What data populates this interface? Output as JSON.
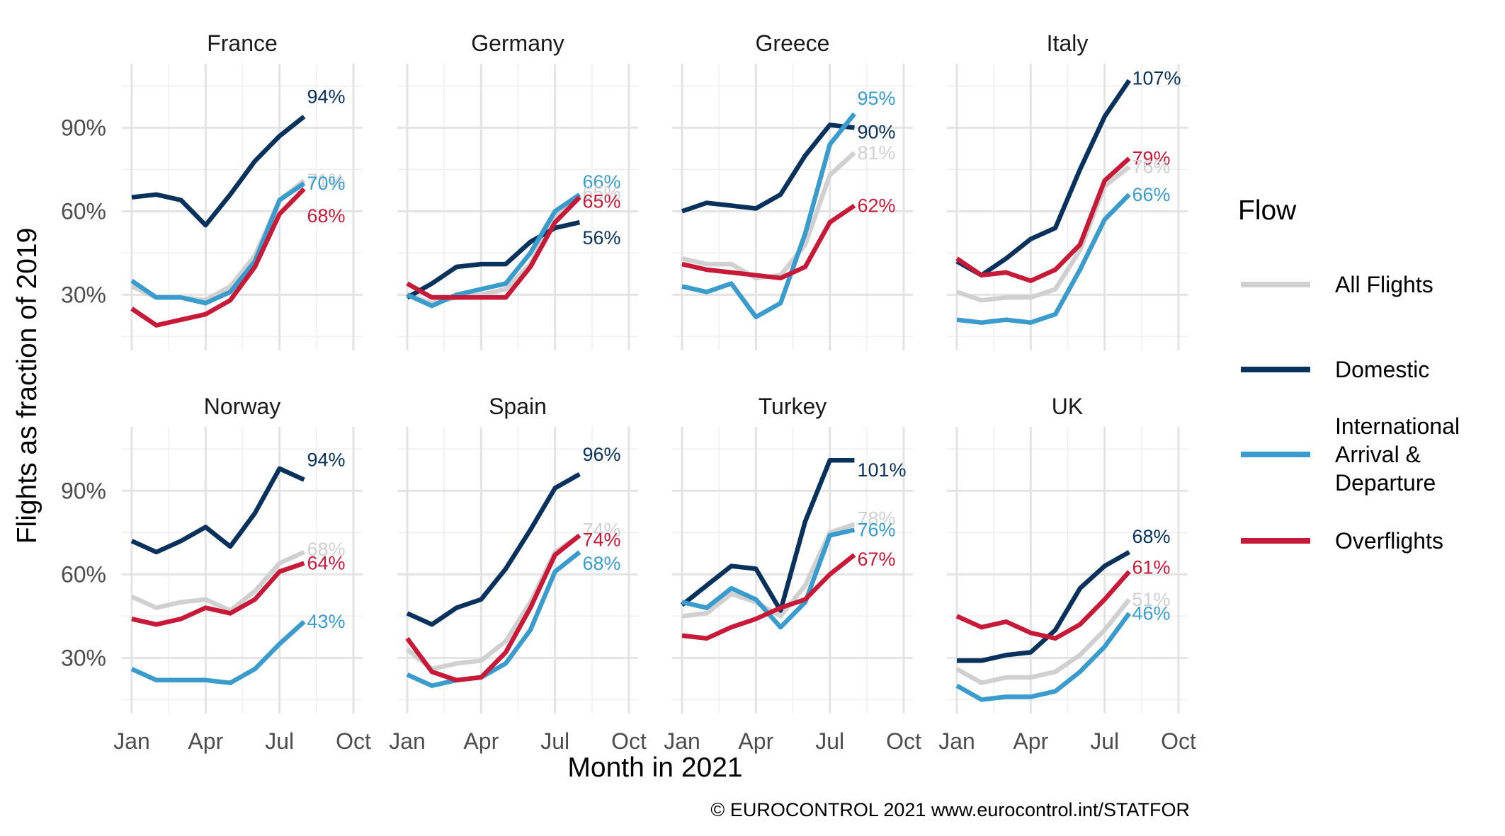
{
  "figure": {
    "ylabel": "Flights as fraction of 2019",
    "xlabel": "Month in 2021",
    "caption": "© EUROCONTROL 2021 www.eurocontrol.int/STATFOR"
  },
  "legend": {
    "title": "Flow",
    "position": "right",
    "entries": [
      {
        "key": "all",
        "label_lines": [
          "All Flights"
        ],
        "color": "#d0d0d0"
      },
      {
        "key": "domestic",
        "label_lines": [
          "Domestic"
        ],
        "color": "#08325c"
      },
      {
        "key": "intl",
        "label_lines": [
          "International",
          "Arrival &",
          "Departure"
        ],
        "color": "#3a9ccc"
      },
      {
        "key": "over",
        "label_lines": [
          "Overflights"
        ],
        "color": "#c61a38"
      }
    ]
  },
  "chart_data": {
    "type": "line",
    "facet_layout": "2 rows x 4 columns",
    "x_ticks": [
      "Jan",
      "Apr",
      "Jul",
      "Oct"
    ],
    "x_months": [
      "Jan",
      "Feb",
      "Mar",
      "Apr",
      "May",
      "Jun",
      "Jul",
      "Aug"
    ],
    "x_range_months": [
      1,
      10
    ],
    "y_range_percent": [
      10,
      113
    ],
    "y_ticks": [
      "30%",
      "60%",
      "90%"
    ],
    "grid": true,
    "series_order": [
      "all",
      "domestic",
      "intl",
      "over"
    ],
    "colors": {
      "all": "#d0d0d0",
      "domestic": "#08325c",
      "intl": "#3a9ccc",
      "over": "#c61a38"
    },
    "panels": [
      {
        "title": "France",
        "series": {
          "all": [
            33,
            29,
            29,
            28,
            33,
            44,
            64,
            71
          ],
          "domestic": [
            65,
            66,
            64,
            55,
            66,
            78,
            87,
            94
          ],
          "intl": [
            35,
            29,
            29,
            27,
            31,
            42,
            64,
            70
          ],
          "over": [
            25,
            19,
            21,
            23,
            28,
            40,
            59,
            68
          ]
        },
        "labels": {
          "domestic": "94%",
          "all": "71%",
          "intl": "70%",
          "over": "68%"
        }
      },
      {
        "title": "Germany",
        "series": {
          "all": [
            30,
            27,
            29,
            30,
            32,
            41,
            58,
            65
          ],
          "domestic": [
            29,
            34,
            40,
            41,
            41,
            49,
            54,
            56
          ],
          "intl": [
            30,
            26,
            30,
            32,
            34,
            45,
            60,
            66
          ],
          "over": [
            34,
            29,
            29,
            29,
            29,
            40,
            56,
            65
          ]
        },
        "labels": {
          "intl": "66%",
          "all": "65%",
          "over": "65%",
          "domestic": "56%"
        }
      },
      {
        "title": "Greece",
        "series": {
          "all": [
            43,
            41,
            41,
            36,
            37,
            48,
            73,
            81
          ],
          "domestic": [
            60,
            63,
            62,
            61,
            66,
            80,
            91,
            90
          ],
          "intl": [
            33,
            31,
            34,
            22,
            27,
            52,
            84,
            95
          ],
          "over": [
            41,
            39,
            38,
            37,
            36,
            40,
            56,
            62
          ]
        },
        "labels": {
          "intl": "95%",
          "domestic": "90%",
          "all": "81%",
          "over": "62%"
        }
      },
      {
        "title": "Italy",
        "series": {
          "all": [
            31,
            28,
            29,
            29,
            32,
            46,
            69,
            76
          ],
          "domestic": [
            42,
            37,
            43,
            50,
            54,
            75,
            94,
            107
          ],
          "intl": [
            21,
            20,
            21,
            20,
            23,
            39,
            57,
            66
          ],
          "over": [
            43,
            37,
            38,
            35,
            39,
            48,
            71,
            79
          ]
        },
        "labels": {
          "domestic": "107%",
          "over": "79%",
          "all": "76%",
          "intl": "66%"
        }
      },
      {
        "title": "Norway",
        "series": {
          "all": [
            52,
            48,
            50,
            51,
            47,
            54,
            64,
            68
          ],
          "domestic": [
            72,
            68,
            72,
            77,
            70,
            82,
            98,
            94
          ],
          "intl": [
            26,
            22,
            22,
            22,
            21,
            26,
            35,
            43
          ],
          "over": [
            44,
            42,
            44,
            48,
            46,
            51,
            61,
            64
          ]
        },
        "labels": {
          "domestic": "94%",
          "all": "68%",
          "over": "64%",
          "intl": "43%"
        }
      },
      {
        "title": "Spain",
        "series": {
          "all": [
            33,
            26,
            28,
            29,
            36,
            50,
            68,
            74
          ],
          "domestic": [
            46,
            42,
            48,
            51,
            62,
            76,
            91,
            96
          ],
          "intl": [
            24,
            20,
            22,
            23,
            28,
            40,
            61,
            68
          ],
          "over": [
            37,
            25,
            22,
            23,
            32,
            48,
            67,
            74
          ]
        },
        "labels": {
          "domestic": "96%",
          "all": "74%",
          "over": "74%",
          "intl": "68%"
        }
      },
      {
        "title": "Turkey",
        "series": {
          "all": [
            45,
            46,
            53,
            50,
            45,
            56,
            75,
            78
          ],
          "domestic": [
            49,
            56,
            63,
            62,
            47,
            79,
            101,
            101
          ],
          "intl": [
            50,
            48,
            55,
            51,
            41,
            50,
            74,
            76
          ],
          "over": [
            38,
            37,
            41,
            44,
            48,
            51,
            60,
            67
          ]
        },
        "labels": {
          "domestic": "101%",
          "all": "78%",
          "intl": "76%",
          "over": "67%"
        }
      },
      {
        "title": "UK",
        "series": {
          "all": [
            26,
            21,
            23,
            23,
            25,
            31,
            40,
            51
          ],
          "domestic": [
            29,
            29,
            31,
            32,
            40,
            55,
            63,
            68
          ],
          "intl": [
            20,
            15,
            16,
            16,
            18,
            25,
            34,
            46
          ],
          "over": [
            45,
            41,
            43,
            39,
            37,
            42,
            51,
            61
          ]
        },
        "labels": {
          "domestic": "68%",
          "over": "61%",
          "all": "51%",
          "intl": "46%"
        }
      }
    ]
  }
}
